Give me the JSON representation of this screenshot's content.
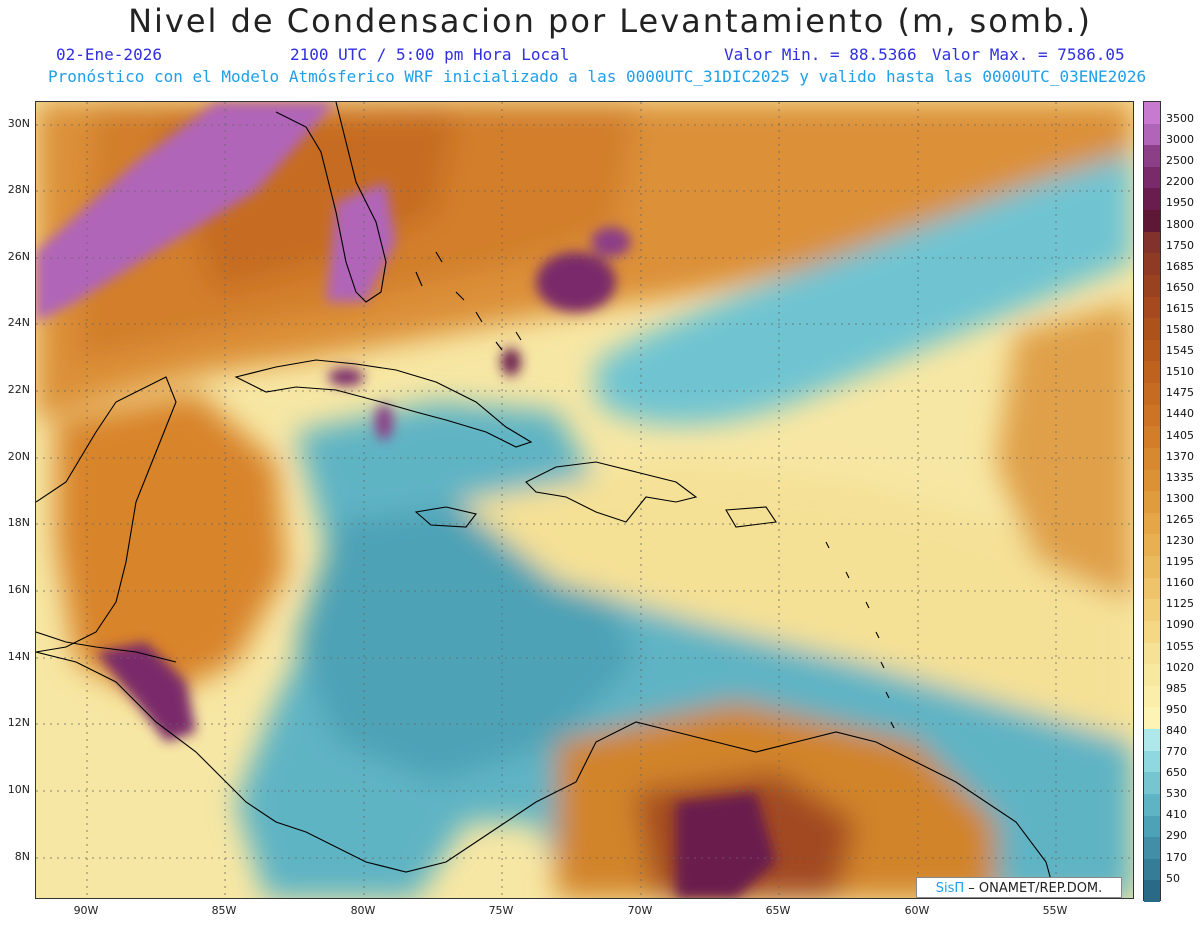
{
  "header": {
    "title": "Nivel de Condensacion por Levantamiento (m, somb.)",
    "date": "02-Ene-2026",
    "time": "2100 UTC / 5:00 pm Hora Local",
    "value_min": "Valor Min. = 88.5366",
    "value_max": "Valor Max. = 7586.05",
    "forecast": "Pronóstico con el Modelo Atmósferico WRF inicializado a las 0000UTC_31DIC2025 y valido hasta las  0000UTC_03ENE2026"
  },
  "map": {
    "lat_labels": [
      "30N",
      "28N",
      "26N",
      "24N",
      "22N",
      "20N",
      "18N",
      "16N",
      "14N",
      "12N",
      "10N",
      "8N"
    ],
    "lon_labels": [
      "90W",
      "85W",
      "80W",
      "75W",
      "70W",
      "65W",
      "60W",
      "55W"
    ],
    "lat_range": [
      6.7,
      30.6
    ],
    "lon_range": [
      -91.8,
      -52.2
    ]
  },
  "colorbar": {
    "labels": [
      "3500",
      "3000",
      "2500",
      "2200",
      "1950",
      "1800",
      "1750",
      "1685",
      "1650",
      "1615",
      "1580",
      "1545",
      "1510",
      "1475",
      "1440",
      "1405",
      "1370",
      "1335",
      "1300",
      "1265",
      "1230",
      "1195",
      "1160",
      "1125",
      "1090",
      "1055",
      "1020",
      "985",
      "950",
      "840",
      "770",
      "650",
      "530",
      "410",
      "290",
      "170",
      "50"
    ],
    "colors": [
      "#c87ad0",
      "#b065b8",
      "#8c3e86",
      "#7a2a6a",
      "#6a1c4e",
      "#5e1836",
      "#82322a",
      "#8e3a24",
      "#9a4220",
      "#a44a1e",
      "#ae521c",
      "#b65a1c",
      "#be621e",
      "#c66c20",
      "#cc7424",
      "#d27e28",
      "#d8882e",
      "#dc9234",
      "#e09c3c",
      "#e4a646",
      "#e8b050",
      "#ebba5c",
      "#eec46a",
      "#f1ce78",
      "#f4d886",
      "#f6e294",
      "#f8e9a0",
      "#faeeaa",
      "#fcf3b4",
      "#aee8ea",
      "#8fd8e0",
      "#76c6d2",
      "#5eb4c4",
      "#4ea2b6",
      "#418ea6",
      "#357c96",
      "#2a6a86"
    ]
  },
  "credit": {
    "brand": "SisΠ",
    "text": "– ONAMET/REP.DOM."
  },
  "palette": {
    "title_color": "#222222",
    "info_blue": "#2f2fe0",
    "info_cyan": "#1e9fe8",
    "coast_color": "#000000"
  }
}
